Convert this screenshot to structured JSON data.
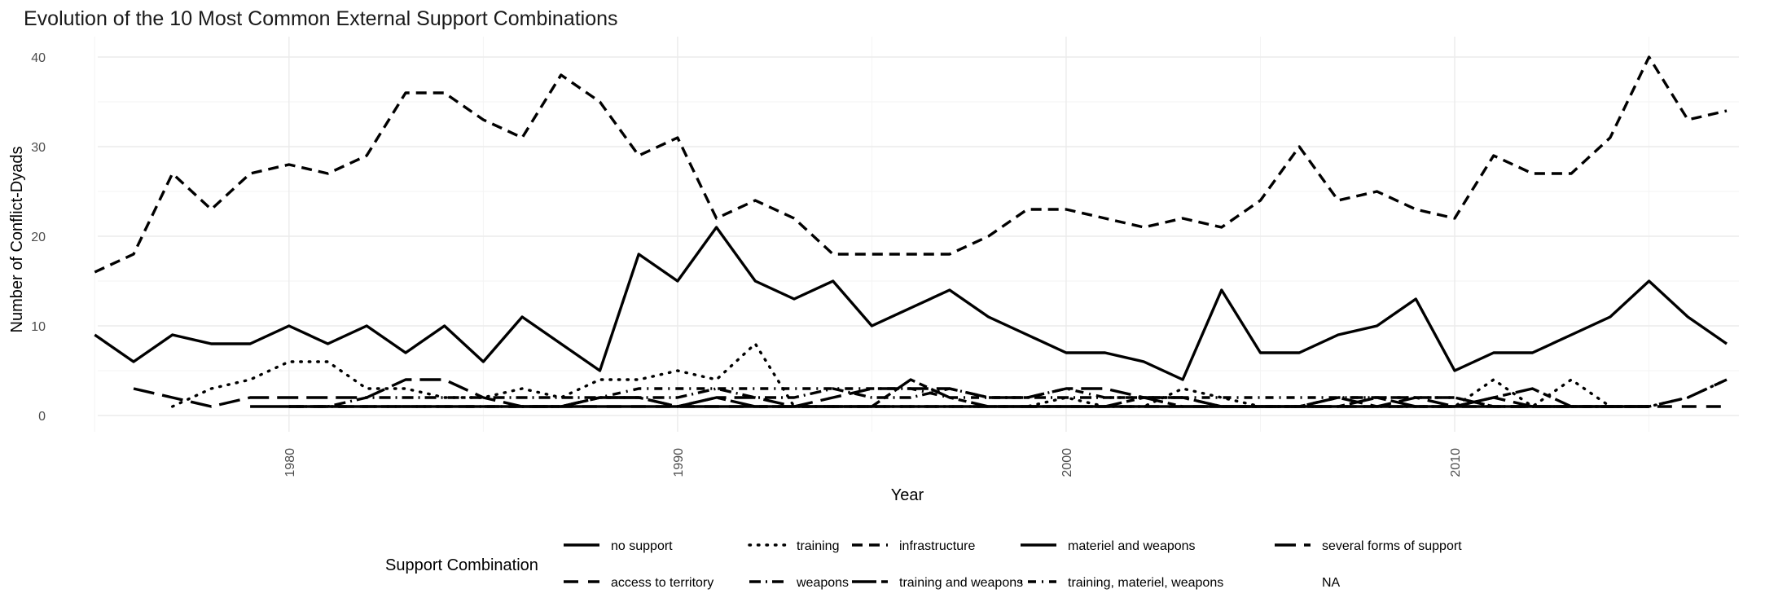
{
  "chart_data": {
    "type": "line",
    "title": "Evolution of the 10 Most Common External Support Combinations",
    "xlabel": "Year",
    "ylabel": "Number of Conflict-Dyads",
    "xlim": [
      1975,
      2017
    ],
    "ylim": [
      0,
      40
    ],
    "x_ticks": [
      1980,
      1990,
      2000,
      2010
    ],
    "y_ticks": [
      0,
      10,
      20,
      30,
      40
    ],
    "grid": true,
    "legend": {
      "title": "Support Combination",
      "position": "bottom",
      "rows": 2
    },
    "series": [
      {
        "name": "no support",
        "dash": "solid",
        "x": [
          1975,
          1976,
          1977,
          1978,
          1979,
          1980,
          1981,
          1982,
          1983,
          1984,
          1985,
          1986,
          1987,
          1988,
          1989,
          1990,
          1991,
          1992,
          1993,
          1994,
          1995,
          1996,
          1997,
          1998,
          1999,
          2000,
          2001,
          2002,
          2003,
          2004,
          2005,
          2006,
          2007,
          2008,
          2009,
          2010,
          2011,
          2012,
          2013,
          2014,
          2015,
          2016,
          2017
        ],
        "y": [
          9,
          6,
          9,
          8,
          8,
          10,
          8,
          10,
          7,
          10,
          6,
          11,
          8,
          5,
          18,
          15,
          21,
          15,
          13,
          15,
          10,
          12,
          14,
          11,
          9,
          7,
          7,
          6,
          4,
          14,
          7,
          7,
          9,
          10,
          13,
          5,
          7,
          7,
          9,
          11,
          15,
          11,
          8
        ]
      },
      {
        "name": "training",
        "dash": "dot",
        "x": [
          1977,
          1978,
          1979,
          1980,
          1981,
          1982,
          1983,
          1984,
          1985,
          1986,
          1987,
          1988,
          1989,
          1990,
          1991,
          1992,
          1993,
          1994,
          1995,
          1996,
          1997,
          1998,
          1999,
          2000,
          2001,
          2002,
          2003,
          2004,
          2005,
          2006,
          2007,
          2008,
          2009,
          2010,
          2011,
          2012,
          2013,
          2014,
          2015,
          2016,
          2017
        ],
        "y": [
          1,
          3,
          4,
          6,
          6,
          3,
          3,
          2,
          2,
          3,
          2,
          4,
          4,
          5,
          4,
          8,
          1,
          1,
          1,
          1,
          1,
          1,
          1,
          2,
          1,
          1,
          3,
          2,
          1,
          1,
          1,
          1,
          1,
          1,
          4,
          1,
          4,
          1,
          1,
          2,
          4
        ]
      },
      {
        "name": "infrastructure",
        "dash": "short-dash",
        "x": [
          1975,
          1976,
          1977,
          1978,
          1979,
          1980,
          1981,
          1982,
          1983,
          1984,
          1985,
          1986,
          1987,
          1988,
          1989,
          1990,
          1991,
          1992,
          1993,
          1994,
          1995,
          1996,
          1997,
          1998,
          1999,
          2000,
          2001,
          2002,
          2003,
          2004,
          2005,
          2006,
          2007,
          2008,
          2009,
          2010,
          2011,
          2012,
          2013,
          2014,
          2015,
          2016,
          2017
        ],
        "y": [
          16,
          18,
          27,
          23,
          27,
          28,
          27,
          29,
          36,
          36,
          33,
          31,
          38,
          35,
          29,
          31,
          22,
          24,
          22,
          18,
          18,
          18,
          18,
          20,
          23,
          23,
          22,
          21,
          22,
          21,
          24,
          30,
          24,
          25,
          23,
          22,
          29,
          27,
          27,
          31,
          40,
          33,
          34
        ]
      },
      {
        "name": "materiel and weapons",
        "dash": "solid-long",
        "x": [
          1979,
          1980,
          1981,
          1982,
          1983,
          1984,
          1985,
          1986,
          1987,
          1988,
          1989,
          1990,
          1991,
          1992,
          1993,
          1994,
          1995,
          1996,
          1997,
          1998,
          1999,
          2000,
          2001,
          2002,
          2003,
          2004,
          2005,
          2006,
          2007,
          2008,
          2009,
          2010,
          2011,
          2012,
          2013,
          2014,
          2015
        ],
        "y": [
          1,
          1,
          1,
          1,
          1,
          1,
          1,
          1,
          1,
          1,
          1,
          1,
          1,
          1,
          1,
          1,
          1,
          1,
          1,
          1,
          1,
          1,
          1,
          1,
          1,
          1,
          1,
          1,
          1,
          1,
          1,
          1,
          1,
          1,
          1,
          1,
          1
        ]
      },
      {
        "name": "several forms of support",
        "dash": "long-dash",
        "x": [
          1976,
          1977,
          1978,
          1979,
          1980,
          1981,
          1982,
          1983,
          1984,
          1985,
          1986,
          1987,
          1988,
          1989,
          1990,
          1991,
          1992,
          1993,
          1994,
          1995,
          1996,
          1997,
          1998,
          1999,
          2000,
          2001,
          2002,
          2003,
          2004,
          2005,
          2006,
          2007,
          2008,
          2009,
          2010,
          2011,
          2012,
          2013,
          2014,
          2015,
          2016,
          2017
        ],
        "y": [
          3,
          2,
          1,
          2,
          2,
          2,
          2,
          4,
          4,
          2,
          1,
          1,
          2,
          2,
          1,
          2,
          2,
          1,
          2,
          3,
          3,
          3,
          2,
          2,
          3,
          3,
          2,
          2,
          1,
          1,
          1,
          2,
          1,
          2,
          1,
          2,
          1,
          1,
          1,
          1,
          2,
          4
        ]
      },
      {
        "name": "access to territory",
        "dash": "medium-dash",
        "x": [
          1980,
          1981,
          1982,
          1983,
          1984,
          1985,
          1986,
          1987,
          1988,
          1989,
          1990,
          1991,
          1992,
          1993,
          1994,
          1995,
          1996,
          1997,
          1998,
          1999,
          2000,
          2001,
          2002,
          2003,
          2004,
          2005,
          2006,
          2007,
          2008,
          2009,
          2010,
          2011,
          2012,
          2013,
          2014,
          2015,
          2016,
          2017
        ],
        "y": [
          1,
          1,
          1,
          1,
          1,
          1,
          1,
          1,
          1,
          1,
          1,
          1,
          1,
          1,
          1,
          1,
          1,
          1,
          1,
          1,
          1,
          1,
          1,
          1,
          1,
          1,
          1,
          1,
          1,
          1,
          1,
          1,
          1,
          1,
          1,
          1,
          1,
          1
        ]
      },
      {
        "name": "weapons",
        "dash": "dash-dot",
        "x": [
          1980,
          1981,
          1982,
          1983,
          1984,
          1985,
          1986,
          1987,
          1988,
          1989,
          1990,
          1991,
          1992,
          1993,
          1994,
          1995,
          1996,
          1997,
          1998,
          1999,
          2000,
          2001,
          2002,
          2003,
          2004,
          2005,
          2006,
          2007,
          2008,
          2009,
          2010,
          2011,
          2012,
          2013,
          2014,
          2015
        ],
        "y": [
          1,
          1,
          2,
          2,
          2,
          2,
          2,
          2,
          2,
          2,
          2,
          3,
          2,
          2,
          3,
          2,
          2,
          3,
          2,
          2,
          2,
          2,
          2,
          2,
          1,
          1,
          1,
          2,
          2,
          2,
          2,
          1,
          1,
          1,
          1,
          1
        ]
      },
      {
        "name": "training and weapons",
        "dash": "long-short",
        "x": [
          1986,
          1987,
          1988,
          1989,
          1990,
          1991,
          1992,
          1993,
          1994,
          1995,
          1996,
          1997,
          1998,
          1999,
          2000,
          2001,
          2002,
          2003,
          2004,
          2005,
          2006,
          2007,
          2008,
          2009,
          2010,
          2011,
          2012,
          2013,
          2014,
          2015
        ],
        "y": [
          1,
          1,
          2,
          2,
          1,
          2,
          1,
          1,
          1,
          1,
          4,
          2,
          1,
          1,
          1,
          1,
          2,
          1,
          1,
          1,
          1,
          1,
          2,
          1,
          1,
          2,
          3,
          1,
          1,
          1
        ]
      },
      {
        "name": "training, materiel, weapons",
        "dash": "dot-dash",
        "x": [
          1980,
          1981,
          1982,
          1983,
          1984,
          1985,
          1986,
          1987,
          1988,
          1989,
          1990,
          1991,
          1992,
          1993,
          1994,
          1995,
          1996,
          1997,
          1998,
          1999,
          2000,
          2001,
          2002,
          2003,
          2004,
          2005,
          2006,
          2007,
          2008,
          2009,
          2010,
          2011,
          2012,
          2013,
          2014,
          2015
        ],
        "y": [
          1,
          1,
          1,
          1,
          1,
          1,
          1,
          1,
          2,
          3,
          3,
          3,
          3,
          3,
          3,
          3,
          3,
          2,
          2,
          2,
          3,
          2,
          2,
          2,
          2,
          2,
          2,
          2,
          2,
          2,
          2,
          1,
          1,
          1,
          1,
          1
        ]
      },
      {
        "name": "NA",
        "dash": "none",
        "x": [],
        "y": []
      }
    ]
  }
}
